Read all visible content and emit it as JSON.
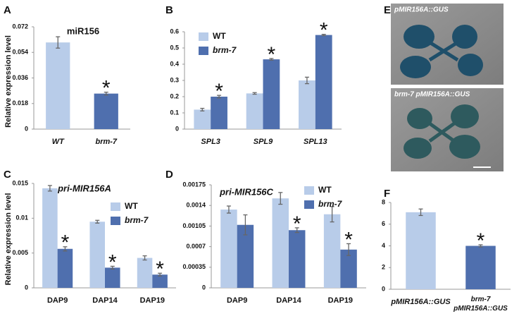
{
  "chart_data": [
    {
      "type": "bar",
      "panel": "A",
      "title": "miR156",
      "y_label": "Relative expression level",
      "categories": [
        "WT",
        "brm-7"
      ],
      "values": [
        0.061,
        0.025
      ],
      "errors": [
        0.004,
        0.001
      ],
      "labels": [
        null,
        "*"
      ],
      "colors": [
        "#b8cce9",
        "#4f6fae"
      ],
      "ylim": [
        0,
        0.072
      ],
      "yticks": [
        0,
        0.018,
        0.036,
        0.054,
        0.072
      ]
    },
    {
      "type": "bar",
      "panel": "B",
      "categories": [
        "SPL3",
        "SPL9",
        "SPL13"
      ],
      "series": [
        {
          "name": "WT",
          "color": "#b8cce9",
          "values": [
            0.12,
            0.22,
            0.3
          ],
          "errors": [
            0.008,
            0.005,
            0.02
          ],
          "labels": [
            null,
            null,
            null
          ]
        },
        {
          "name": "brm-7",
          "color": "#4f6fae",
          "values": [
            0.2,
            0.43,
            0.58
          ],
          "errors": [
            0.008,
            0.005,
            0.004
          ],
          "labels": [
            "*",
            "*",
            "*"
          ]
        }
      ],
      "ylim": [
        0,
        0.6
      ],
      "yticks": [
        0,
        0.1,
        0.2,
        0.3,
        0.4,
        0.5,
        0.6
      ]
    },
    {
      "type": "bar",
      "panel": "C",
      "title": "pri-MIR156A",
      "y_label": "Relative expression level",
      "categories": [
        "DAP9",
        "DAP14",
        "DAP19"
      ],
      "series": [
        {
          "name": "WT",
          "color": "#b8cce9",
          "values": [
            0.0143,
            0.0095,
            0.0043
          ],
          "errors": [
            0.0004,
            0.0002,
            0.0003
          ],
          "labels": [
            null,
            null,
            null
          ]
        },
        {
          "name": "brm-7",
          "color": "#4f6fae",
          "values": [
            0.0056,
            0.0029,
            0.0019
          ],
          "errors": [
            0.0003,
            0.0002,
            0.0002
          ],
          "labels": [
            "*",
            "*",
            "*"
          ]
        }
      ],
      "ylim": [
        0,
        0.015
      ],
      "yticks": [
        0,
        0.005,
        0.01,
        0.015
      ]
    },
    {
      "type": "bar",
      "panel": "D",
      "title": "pri-MIR156C",
      "categories": [
        "DAP9",
        "DAP14",
        "DAP19"
      ],
      "series": [
        {
          "name": "WT",
          "color": "#b8cce9",
          "values": [
            0.00133,
            0.00152,
            0.00125
          ],
          "errors": [
            6e-05,
            0.0001,
            0.00013
          ],
          "labels": [
            null,
            null,
            null
          ]
        },
        {
          "name": "brm-7",
          "color": "#4f6fae",
          "values": [
            0.00107,
            0.00098,
            0.00065
          ],
          "errors": [
            0.00017,
            4e-05,
            0.0001
          ],
          "labels": [
            null,
            "*",
            "*"
          ]
        }
      ],
      "ylim": [
        0,
        0.00175
      ],
      "yticks": [
        0,
        0.00035,
        0.0007,
        0.00105,
        0.0014,
        0.00175
      ]
    },
    {
      "type": "bar",
      "panel": "F",
      "categories": [
        "pMIR156A::GUS",
        "brm-7 pMIR156A::GUS"
      ],
      "values": [
        7.1,
        4.0
      ],
      "errors": [
        0.3,
        0.1
      ],
      "labels": [
        null,
        "*"
      ],
      "colors": [
        "#b8cce9",
        "#4f6fae"
      ],
      "ylim": [
        0,
        8
      ],
      "yticks": [
        0,
        2,
        4,
        6,
        8
      ]
    }
  ],
  "image_panel": {
    "panel": "E",
    "captions": [
      "pMIR156A::GUS",
      "brm-7 pMIR156A::GUS"
    ]
  }
}
